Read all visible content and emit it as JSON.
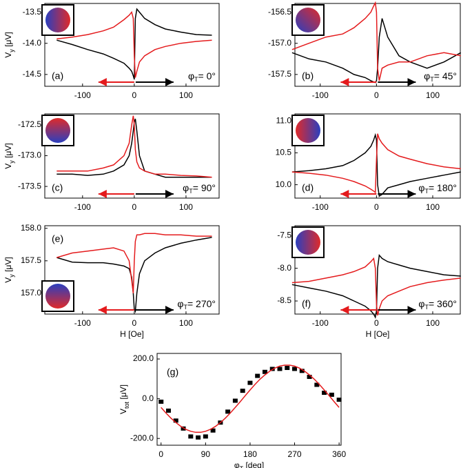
{
  "chart_data": [
    {
      "type": "line",
      "label": "(a)",
      "annotation": {
        "main": "φ",
        "sub": "T",
        "rest": "= 0°"
      },
      "ylabel": {
        "main": "V",
        "sub": "y",
        "rest": " [μV]"
      },
      "xlim": [
        -173,
        164
      ],
      "ylim": [
        -14.69,
        -13.36
      ],
      "xticks": [
        -100,
        0,
        100
      ],
      "yticks": [
        {
          "value": -13.5,
          "label": "-13.5"
        },
        {
          "value": -14,
          "label": "-14.0"
        },
        {
          "value": -14.5,
          "label": "-14.5"
        }
      ],
      "x": [
        -150,
        -120,
        -90,
        -60,
        -40,
        -20,
        -10,
        -5,
        -2,
        0,
        2,
        5,
        10,
        20,
        40,
        60,
        90,
        120,
        150
      ],
      "series": [
        {
          "color": "#000000",
          "values": [
            -13.95,
            -14.02,
            -14.1,
            -14.17,
            -14.24,
            -14.32,
            -14.4,
            -14.45,
            -14.52,
            -14.58,
            -13.6,
            -13.45,
            -13.5,
            -13.6,
            -13.7,
            -13.77,
            -13.82,
            -13.86,
            -13.87
          ]
        },
        {
          "color": "#e41a1c",
          "values": [
            -13.93,
            -13.9,
            -13.86,
            -13.8,
            -13.74,
            -13.62,
            -13.55,
            -13.5,
            -13.6,
            -14.2,
            -14.55,
            -14.45,
            -14.3,
            -14.2,
            -14.1,
            -14.05,
            -14.0,
            -13.97,
            -13.95
          ]
        }
      ]
    },
    {
      "type": "line",
      "label": "(b)",
      "annotation": {
        "main": "φ",
        "sub": "T",
        "rest": "= 45°"
      },
      "xlim": [
        -145,
        149
      ],
      "ylim": [
        -157.69,
        -156.36
      ],
      "xticks": [
        -100,
        0,
        100
      ],
      "yticks": [
        {
          "value": -156.5,
          "label": "-156.5"
        },
        {
          "value": -157,
          "label": "-157.0"
        },
        {
          "value": -157.5,
          "label": "-157.5"
        }
      ],
      "x": [
        -150,
        -120,
        -90,
        -60,
        -40,
        -20,
        -10,
        -5,
        -2,
        0,
        2,
        5,
        10,
        20,
        40,
        60,
        90,
        120,
        150
      ],
      "series": [
        {
          "color": "#000000",
          "values": [
            -157.15,
            -157.25,
            -157.3,
            -157.4,
            -157.5,
            -157.55,
            -157.6,
            -157.62,
            -157.63,
            -157.6,
            -157.4,
            -156.9,
            -156.6,
            -156.9,
            -157.2,
            -157.3,
            -157.4,
            -157.3,
            -157.15
          ]
        },
        {
          "color": "#e41a1c",
          "values": [
            -157.1,
            -157.0,
            -156.9,
            -156.85,
            -156.75,
            -156.6,
            -156.5,
            -156.4,
            -156.35,
            -156.5,
            -157.4,
            -157.6,
            -157.4,
            -157.35,
            -157.3,
            -157.3,
            -157.2,
            -157.15,
            -157.2
          ]
        }
      ]
    },
    {
      "type": "line",
      "label": "(c)",
      "annotation": {
        "main": "φ",
        "sub": "T",
        "rest": "= 90°"
      },
      "ylabel": {
        "main": "V",
        "sub": "y",
        "rest": " [μV]"
      },
      "xlim": [
        -173,
        164
      ],
      "ylim": [
        -173.69,
        -172.32
      ],
      "xticks": [
        -100,
        0,
        100
      ],
      "yticks": [
        {
          "value": -172.5,
          "label": "-172.5"
        },
        {
          "value": -173,
          "label": "-173.0"
        },
        {
          "value": -173.5,
          "label": "-173.5"
        }
      ],
      "x": [
        -150,
        -120,
        -90,
        -60,
        -40,
        -20,
        -10,
        -5,
        -2,
        0,
        2,
        5,
        10,
        20,
        40,
        60,
        90,
        120,
        150
      ],
      "series": [
        {
          "color": "#000000",
          "values": [
            -173.3,
            -173.3,
            -173.32,
            -173.3,
            -173.25,
            -173.15,
            -173.0,
            -172.8,
            -172.6,
            -172.45,
            -172.4,
            -172.6,
            -173.0,
            -173.25,
            -173.3,
            -173.35,
            -173.35,
            -173.35,
            -173.35
          ]
        },
        {
          "color": "#e41a1c",
          "values": [
            -173.25,
            -173.25,
            -173.25,
            -173.2,
            -173.15,
            -173.0,
            -172.8,
            -172.5,
            -172.35,
            -172.5,
            -172.9,
            -173.1,
            -173.2,
            -173.25,
            -173.3,
            -173.3,
            -173.32,
            -173.33,
            -173.35
          ]
        }
      ]
    },
    {
      "type": "line",
      "label": "(d)",
      "annotation": {
        "main": "φ",
        "sub": "T",
        "rest": "= 180°"
      },
      "xlim": [
        -145,
        149
      ],
      "ylim": [
        9.79,
        11.11
      ],
      "xticks": [
        -100,
        0,
        100
      ],
      "yticks": [
        {
          "value": 11,
          "label": "11.0"
        },
        {
          "value": 10.5,
          "label": "10.5"
        },
        {
          "value": 10,
          "label": "10.0"
        }
      ],
      "x": [
        -150,
        -120,
        -90,
        -60,
        -40,
        -20,
        -10,
        -5,
        -2,
        0,
        2,
        5,
        10,
        20,
        40,
        60,
        90,
        120,
        150
      ],
      "series": [
        {
          "color": "#000000",
          "values": [
            10.2,
            10.22,
            10.25,
            10.3,
            10.38,
            10.5,
            10.6,
            10.7,
            10.78,
            10.7,
            10.0,
            9.82,
            9.85,
            9.95,
            10.0,
            10.05,
            10.1,
            10.15,
            10.2
          ]
        },
        {
          "color": "#e41a1c",
          "values": [
            10.2,
            10.18,
            10.15,
            10.1,
            10.05,
            9.98,
            9.93,
            9.9,
            9.88,
            10.4,
            10.8,
            10.72,
            10.65,
            10.55,
            10.45,
            10.4,
            10.33,
            10.28,
            10.25
          ]
        }
      ]
    },
    {
      "type": "line",
      "label": "(e)",
      "annotation": {
        "main": "φ",
        "sub": "T",
        "rest": "= 270°"
      },
      "ylabel": {
        "main": "V",
        "sub": "y",
        "rest": " [μV]"
      },
      "xlabel": "H [Oe]",
      "xlim": [
        -173,
        164
      ],
      "ylim": [
        156.68,
        158.04
      ],
      "xticks": [
        -100,
        0,
        100
      ],
      "yticks": [
        {
          "value": 158,
          "label": "158.0"
        },
        {
          "value": 157.5,
          "label": "157.5"
        },
        {
          "value": 157,
          "label": "157.0"
        }
      ],
      "x": [
        -150,
        -120,
        -90,
        -60,
        -40,
        -20,
        -10,
        -5,
        -2,
        0,
        2,
        5,
        10,
        20,
        40,
        60,
        90,
        120,
        150
      ],
      "series": [
        {
          "color": "#000000",
          "values": [
            157.55,
            157.48,
            157.47,
            157.47,
            157.45,
            157.42,
            157.38,
            157.25,
            157.0,
            156.75,
            156.72,
            157.0,
            157.3,
            157.5,
            157.62,
            157.7,
            157.77,
            157.82,
            157.86
          ]
        },
        {
          "color": "#e41a1c",
          "values": [
            157.55,
            157.62,
            157.65,
            157.68,
            157.7,
            157.65,
            157.5,
            157.2,
            157.0,
            157.5,
            157.8,
            157.9,
            157.9,
            157.92,
            157.92,
            157.9,
            157.9,
            157.88,
            157.88
          ]
        }
      ]
    },
    {
      "type": "line",
      "label": "(f)",
      "annotation": {
        "main": "φ",
        "sub": "T",
        "rest": "= 360°"
      },
      "xlabel": "H [Oe]",
      "xlim": [
        -145,
        149
      ],
      "ylim": [
        -8.7,
        -7.35
      ],
      "xticks": [
        -100,
        0,
        100
      ],
      "yticks": [
        {
          "value": -7.5,
          "label": "-7.5"
        },
        {
          "value": -8,
          "label": "-8.0"
        },
        {
          "value": -8.5,
          "label": "-8.5"
        }
      ],
      "x": [
        -150,
        -120,
        -90,
        -60,
        -40,
        -20,
        -10,
        -5,
        -2,
        0,
        2,
        5,
        10,
        20,
        40,
        60,
        90,
        120,
        150
      ],
      "series": [
        {
          "color": "#000000",
          "values": [
            -8.25,
            -8.3,
            -8.35,
            -8.42,
            -8.5,
            -8.58,
            -8.65,
            -8.7,
            -8.75,
            -8.65,
            -8.0,
            -7.8,
            -7.85,
            -7.9,
            -7.95,
            -8.0,
            -8.05,
            -8.1,
            -8.12
          ]
        },
        {
          "color": "#e41a1c",
          "values": [
            -8.22,
            -8.2,
            -8.15,
            -8.1,
            -8.05,
            -7.98,
            -7.9,
            -7.85,
            -8.0,
            -8.55,
            -8.72,
            -8.62,
            -8.5,
            -8.42,
            -8.35,
            -8.28,
            -8.22,
            -8.18,
            -8.15
          ]
        }
      ]
    },
    {
      "type": "scatter",
      "label": "(g)",
      "ylabel": {
        "main": "V",
        "sub": "tot",
        "rest": " [μV]"
      },
      "xlabel": {
        "main": "φ",
        "sub": "T",
        "rest": " [deg]"
      },
      "xlim": [
        -8,
        364
      ],
      "ylim": [
        -234,
        228
      ],
      "xticks": [
        0,
        90,
        180,
        270,
        360
      ],
      "yticks": [
        {
          "value": 200,
          "label": "200.0"
        },
        {
          "value": 0,
          "label": "0.0"
        },
        {
          "value": -200,
          "label": "-200.0"
        }
      ],
      "series": [
        {
          "type": "scatter",
          "color": "#000000",
          "x": [
            0,
            15,
            30,
            45,
            60,
            75,
            90,
            105,
            120,
            135,
            150,
            165,
            180,
            195,
            210,
            225,
            240,
            255,
            270,
            285,
            300,
            315,
            330,
            345,
            360
          ],
          "values": [
            -15,
            -60,
            -110,
            -150,
            -190,
            -195,
            -190,
            -160,
            -120,
            -65,
            -10,
            40,
            80,
            115,
            135,
            150,
            150,
            155,
            150,
            140,
            110,
            70,
            30,
            20,
            -5
          ]
        },
        {
          "type": "line",
          "color": "#e41a1c",
          "x": [
            0,
            10,
            20,
            30,
            40,
            50,
            60,
            70,
            80,
            90,
            100,
            110,
            120,
            130,
            140,
            150,
            160,
            170,
            180,
            190,
            200,
            210,
            220,
            230,
            240,
            250,
            260,
            270,
            280,
            290,
            300,
            310,
            320,
            330,
            340,
            350,
            360
          ],
          "values": [
            -44,
            -72,
            -98,
            -120,
            -139,
            -154,
            -164,
            -169,
            -169,
            -164,
            -154,
            -139,
            -120,
            -98,
            -72,
            -44,
            -15,
            15,
            44,
            72,
            98,
            120,
            139,
            154,
            164,
            169,
            169,
            164,
            154,
            139,
            120,
            98,
            72,
            44,
            15,
            -15,
            -44
          ]
        }
      ]
    }
  ]
}
